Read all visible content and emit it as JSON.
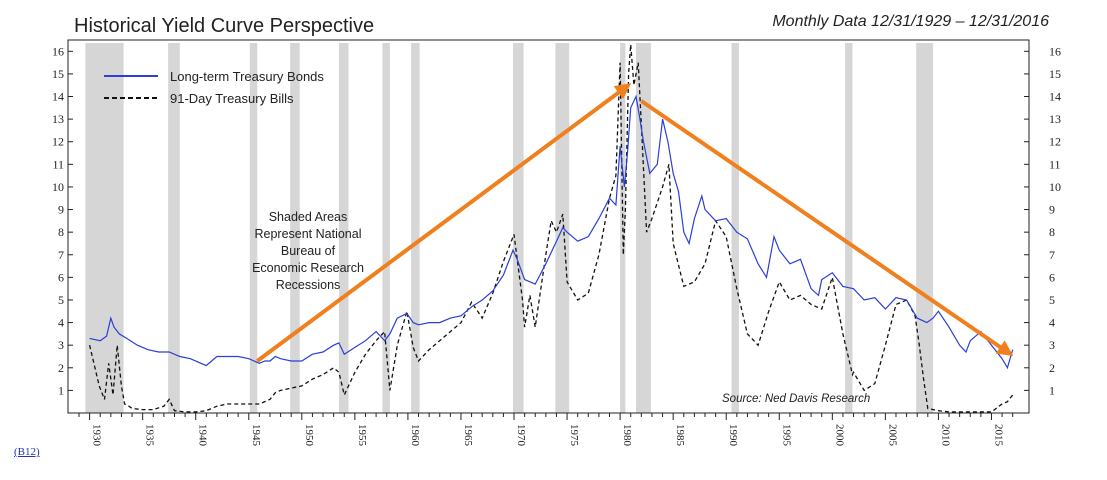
{
  "header": {
    "title": "Historical Yield Curve Perspective",
    "subtitle": "Monthly Data 12/31/1929 – 12/31/2016"
  },
  "footer": {
    "code_link": "(B12)"
  },
  "chart_data": {
    "type": "line",
    "xlim": [
      1929,
      2017.5
    ],
    "ylim": [
      0,
      16.5
    ],
    "y_ticks": [
      1,
      2,
      3,
      4,
      5,
      6,
      7,
      8,
      9,
      10,
      11,
      12,
      13,
      14,
      15,
      16
    ],
    "x_ticks": [
      1930,
      1935,
      1940,
      1945,
      1950,
      1955,
      1960,
      1965,
      1970,
      1975,
      1980,
      1985,
      1990,
      1995,
      2000,
      2005,
      2010,
      2015
    ],
    "legend": [
      "Long-term Treasury Bonds",
      "91-Day Treasury Bills"
    ],
    "legend_position": "top-left",
    "note_lines": [
      "Shaded Areas",
      "Represent National",
      "Bureau of",
      "Economic Research",
      "Recessions"
    ],
    "source": "Source: Ned Davis Research",
    "recessions": [
      [
        1929.6,
        1933.2
      ],
      [
        1937.4,
        1938.5
      ],
      [
        1945.1,
        1945.8
      ],
      [
        1948.9,
        1949.8
      ],
      [
        1953.5,
        1954.4
      ],
      [
        1957.6,
        1958.3
      ],
      [
        1960.3,
        1961.1
      ],
      [
        1969.9,
        1970.9
      ],
      [
        1973.9,
        1975.2
      ],
      [
        1980.0,
        1980.5
      ],
      [
        1981.5,
        1982.9
      ],
      [
        1990.5,
        1991.2
      ],
      [
        2001.2,
        2001.9
      ],
      [
        2007.9,
        2009.5
      ]
    ],
    "arrows": [
      {
        "from": [
          1945.8,
          2.3
        ],
        "to": [
          1980.5,
          14.4
        ]
      },
      {
        "from": [
          1982.0,
          13.8
        ],
        "to": [
          2016.5,
          2.7
        ]
      }
    ],
    "colors": {
      "bonds": "#2b3fd6",
      "bills": "#111111",
      "arrow": "#f0801e",
      "shade": "#d6d6d6"
    },
    "series": [
      {
        "name": "Long-term Treasury Bonds",
        "x": [
          1930,
          1931,
          1931.6,
          1932,
          1932.3,
          1932.8,
          1933.5,
          1934.5,
          1935.5,
          1936.5,
          1937.5,
          1938.5,
          1939.5,
          1940.5,
          1941,
          1942,
          1943,
          1944,
          1945,
          1946,
          1946.5,
          1947,
          1947.5,
          1948,
          1949,
          1950,
          1951,
          1952,
          1953,
          1953.5,
          1954,
          1955,
          1956,
          1957,
          1957.8,
          1958.3,
          1959,
          1959.9,
          1960.5,
          1961,
          1962,
          1963,
          1964,
          1965,
          1966,
          1967,
          1968,
          1969,
          1969.9,
          1970.3,
          1971,
          1972,
          1973,
          1974,
          1974.6,
          1975,
          1976,
          1977,
          1978,
          1979,
          1979.6,
          1980,
          1980.4,
          1980.7,
          1981,
          1981.5,
          1981.8,
          1982.2,
          1982.8,
          1983.5,
          1984,
          1984.5,
          1985,
          1985.5,
          1986,
          1986.5,
          1987,
          1987.7,
          1988,
          1989,
          1990,
          1991,
          1992,
          1993,
          1993.8,
          1994.5,
          1995,
          1996,
          1997,
          1998,
          1998.7,
          1999,
          2000,
          2001,
          2002,
          2003,
          2004,
          2005,
          2006,
          2007,
          2008,
          2008.9,
          2009.5,
          2010,
          2011,
          2012,
          2012.6,
          2013,
          2014,
          2015,
          2016,
          2016.5,
          2017
        ],
        "values": [
          3.3,
          3.2,
          3.4,
          4.2,
          3.8,
          3.5,
          3.3,
          3.0,
          2.8,
          2.7,
          2.7,
          2.5,
          2.4,
          2.2,
          2.1,
          2.5,
          2.5,
          2.5,
          2.4,
          2.2,
          2.3,
          2.3,
          2.5,
          2.4,
          2.3,
          2.3,
          2.6,
          2.7,
          3.0,
          3.1,
          2.6,
          2.9,
          3.2,
          3.6,
          3.2,
          3.5,
          4.2,
          4.4,
          4.0,
          3.9,
          4.0,
          4.0,
          4.2,
          4.3,
          4.7,
          5.0,
          5.4,
          6.1,
          7.2,
          6.8,
          5.9,
          5.7,
          6.6,
          7.6,
          8.2,
          8.0,
          7.6,
          7.8,
          8.6,
          9.5,
          9.2,
          11.8,
          10.0,
          11.5,
          13.5,
          14.0,
          13.2,
          12.0,
          10.6,
          11.0,
          13.0,
          12.0,
          10.6,
          9.8,
          8.0,
          7.5,
          8.6,
          9.6,
          9.0,
          8.5,
          8.6,
          8.0,
          7.7,
          6.6,
          6.0,
          7.8,
          7.2,
          6.6,
          6.8,
          5.5,
          5.2,
          5.9,
          6.2,
          5.6,
          5.5,
          5.0,
          5.1,
          4.6,
          5.1,
          5.0,
          4.2,
          4.0,
          4.2,
          4.5,
          3.8,
          3.0,
          2.7,
          3.2,
          3.6,
          3.0,
          2.4,
          2.0,
          2.8
        ]
      },
      {
        "name": "91-Day Treasury Bills",
        "x": [
          1930,
          1930.4,
          1930.9,
          1931.4,
          1931.8,
          1932.2,
          1932.6,
          1933,
          1933.3,
          1933.7,
          1934,
          1935,
          1936,
          1937,
          1937.5,
          1938,
          1939,
          1940,
          1941,
          1942,
          1943,
          1944,
          1945,
          1946,
          1947,
          1947.5,
          1948,
          1949,
          1950,
          1951,
          1952,
          1953,
          1953.5,
          1954,
          1955,
          1956,
          1957,
          1957.8,
          1958.3,
          1959,
          1959.9,
          1960.5,
          1961,
          1962,
          1963,
          1964,
          1965,
          1966,
          1967,
          1968,
          1969,
          1970,
          1970.8,
          1971,
          1971.5,
          1972,
          1973,
          1973.5,
          1974,
          1974.6,
          1975,
          1976,
          1977,
          1978,
          1979,
          1979.6,
          1980,
          1980.3,
          1980.5,
          1980.8,
          1981,
          1981.3,
          1981.7,
          1982,
          1982.5,
          1983,
          1984,
          1984.6,
          1985,
          1986,
          1987,
          1988,
          1989,
          1990,
          1991,
          1992,
          1993,
          1994,
          1995,
          1996,
          1997,
          1998,
          1999,
          2000,
          2001,
          2001.9,
          2002,
          2003,
          2004,
          2005,
          2006,
          2007,
          2007.8,
          2008.2,
          2008.6,
          2009,
          2010,
          2011,
          2012,
          2013,
          2014,
          2015,
          2016,
          2016.5,
          2017
        ],
        "values": [
          3.0,
          2.2,
          1.2,
          0.6,
          2.2,
          0.8,
          3.0,
          1.2,
          0.4,
          0.3,
          0.2,
          0.15,
          0.15,
          0.3,
          0.6,
          0.1,
          0.05,
          0.05,
          0.1,
          0.3,
          0.4,
          0.4,
          0.4,
          0.4,
          0.6,
          0.9,
          1.0,
          1.1,
          1.2,
          1.5,
          1.7,
          2.0,
          1.8,
          0.8,
          1.8,
          2.6,
          3.2,
          3.6,
          1.0,
          3.0,
          4.5,
          2.9,
          2.3,
          2.8,
          3.2,
          3.6,
          4.0,
          4.9,
          4.2,
          5.3,
          6.7,
          7.9,
          5.0,
          3.8,
          5.2,
          3.8,
          7.0,
          8.5,
          8.0,
          8.8,
          5.8,
          5.0,
          5.3,
          7.0,
          9.5,
          10.5,
          15.5,
          7.0,
          9.0,
          15.0,
          16.3,
          14.5,
          15.5,
          12.8,
          8.0,
          8.6,
          10.0,
          11.0,
          7.5,
          5.6,
          5.8,
          6.6,
          8.5,
          7.8,
          5.5,
          3.5,
          3.0,
          4.5,
          5.8,
          5.0,
          5.2,
          4.8,
          4.6,
          6.0,
          3.5,
          1.7,
          1.8,
          1.0,
          1.3,
          3.0,
          4.8,
          5.0,
          4.3,
          3.0,
          1.5,
          0.2,
          0.1,
          0.05,
          0.05,
          0.05,
          0.05,
          0.05,
          0.4,
          0.5,
          0.8
        ]
      }
    ]
  }
}
